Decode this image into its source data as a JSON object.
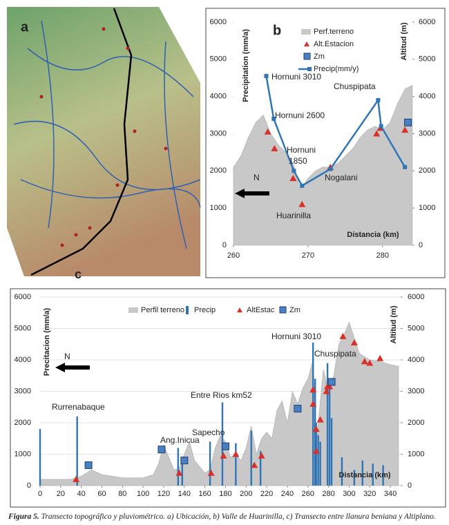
{
  "map": {
    "label": "a",
    "end_label": "c"
  },
  "chart_data": [
    {
      "type": "combo",
      "label": "b",
      "xlim": [
        260,
        284
      ],
      "xticks": [
        260,
        270,
        280
      ],
      "ylim": [
        0,
        6000
      ],
      "yticks": [
        0,
        1000,
        2000,
        3000,
        4000,
        5000,
        6000
      ],
      "y2lim": [
        0,
        6000
      ],
      "y2ticks": [
        0,
        1000,
        2000,
        3000,
        4000,
        5000,
        6000
      ],
      "grid": false,
      "legend": "upper right",
      "ylabel": "Precipitation (mm/a)",
      "y2label": "Altitud (m)",
      "xlabel": "Distancia (km)",
      "series": [
        {
          "name": "Perf.terreno",
          "style": "area",
          "color": "#c8c8c8",
          "axis": "y2",
          "x": [
            260,
            261,
            262,
            263,
            264,
            265,
            266,
            267,
            268,
            269,
            270,
            271,
            272,
            273,
            274,
            275,
            276,
            277,
            278,
            279,
            280,
            281,
            282,
            283,
            284
          ],
          "values": [
            2100,
            2400,
            2900,
            3300,
            3500,
            3000,
            2700,
            2500,
            2200,
            1500,
            1800,
            2000,
            2100,
            2100,
            2200,
            2400,
            2600,
            2900,
            3100,
            3200,
            3100,
            3300,
            3800,
            4200,
            4300
          ]
        },
        {
          "name": "Alt.Estacion",
          "style": "triangle",
          "color": "#d9302a",
          "axis": "y2",
          "x": [
            264.6,
            265.5,
            268,
            269.2,
            273,
            279.2,
            279.7,
            283
          ],
          "values": [
            3050,
            2600,
            1800,
            1100,
            2100,
            3000,
            3150,
            3100
          ]
        },
        {
          "name": "Zm",
          "style": "square",
          "color": "#4a7fc1",
          "axis": "y2",
          "x": [
            283.4
          ],
          "values": [
            3300
          ]
        },
        {
          "name": "Precip(mm/y)",
          "style": "line",
          "color": "#2f75b5",
          "x": [
            264.4,
            265.4,
            268.1,
            269.2,
            273,
            279.4,
            279.8,
            283
          ],
          "values": [
            4550,
            3400,
            2000,
            1600,
            2050,
            3900,
            3200,
            2100
          ]
        }
      ],
      "annotations": [
        "Hornuni 3010",
        "Hornuni 2600",
        "Hornuni",
        "1850",
        "Huarinilla",
        "Nogalani",
        "Chuspipata",
        "N"
      ]
    },
    {
      "type": "combo",
      "xlim": [
        0,
        350
      ],
      "xticks": [
        0,
        20,
        40,
        60,
        80,
        100,
        120,
        140,
        160,
        180,
        200,
        220,
        240,
        260,
        280,
        300,
        320,
        340
      ],
      "ylim": [
        0,
        6000
      ],
      "yticks": [
        0,
        1000,
        2000,
        3000,
        4000,
        5000,
        6000
      ],
      "y2lim": [
        0,
        6000
      ],
      "y2ticks": [
        0,
        1000,
        2000,
        3000,
        4000,
        5000,
        6000
      ],
      "grid": true,
      "legend": "top",
      "ylabel": "Precitacion (mm/a)",
      "y2label": "Altitud (m)",
      "xlabel": "Distancia (km)",
      "series": [
        {
          "name": "Perfil terreno",
          "style": "area",
          "color": "#c8c8c8",
          "axis": "y2",
          "x": [
            0,
            10,
            20,
            30,
            40,
            50,
            60,
            70,
            80,
            90,
            100,
            110,
            115,
            120,
            125,
            130,
            135,
            140,
            145,
            150,
            160,
            165,
            170,
            175,
            180,
            185,
            190,
            195,
            200,
            205,
            210,
            215,
            220,
            225,
            230,
            235,
            240,
            245,
            250,
            255,
            260,
            265,
            268,
            270,
            275,
            280,
            285,
            290,
            295,
            300,
            305,
            310,
            320,
            330,
            340,
            348
          ],
          "values": [
            200,
            200,
            200,
            200,
            300,
            500,
            350,
            300,
            250,
            250,
            250,
            350,
            700,
            1300,
            900,
            500,
            550,
            1000,
            1400,
            800,
            400,
            500,
            1200,
            1600,
            1400,
            900,
            1000,
            800,
            1200,
            1900,
            1000,
            1500,
            1700,
            1500,
            2400,
            2700,
            2000,
            3000,
            2600,
            3100,
            3400,
            4000,
            1200,
            2000,
            3700,
            3000,
            3500,
            4500,
            4800,
            5200,
            4700,
            4200,
            4000,
            3950,
            3850,
            3800
          ]
        },
        {
          "name": "Precip",
          "style": "bar",
          "color": "#2f75b5",
          "x": [
            0,
            36,
            134,
            138,
            165,
            177,
            190,
            205,
            214,
            265,
            267,
            268,
            270,
            272,
            279,
            281,
            283,
            293,
            305,
            313,
            323,
            333
          ],
          "values": [
            1800,
            2200,
            1200,
            700,
            1400,
            2650,
            1350,
            1750,
            1100,
            4550,
            3400,
            2000,
            1600,
            1400,
            3900,
            3200,
            2150,
            900,
            500,
            800,
            700,
            650
          ]
        },
        {
          "name": "AltEstac",
          "style": "triangle",
          "color": "#d9302a",
          "axis": "y2",
          "x": [
            35,
            135,
            166,
            178,
            190,
            208,
            215,
            265,
            265,
            268,
            268,
            272,
            278,
            279,
            281,
            294,
            305,
            315,
            320,
            330
          ],
          "values": [
            200,
            400,
            400,
            950,
            1000,
            650,
            950,
            3050,
            2600,
            1800,
            1100,
            2100,
            3000,
            3150,
            3150,
            4750,
            4550,
            3950,
            3900,
            4050
          ]
        },
        {
          "name": "Zm",
          "style": "square",
          "color": "#4a7fc1",
          "axis": "y2",
          "x": [
            47,
            118,
            140,
            180,
            250,
            283
          ],
          "values": [
            650,
            1150,
            800,
            1250,
            2450,
            3300
          ]
        }
      ],
      "annotations": [
        "Rurrenabaque",
        "Ang.Inicua",
        "Sapecho",
        "Entre Rios km52",
        "Hornuni 3010",
        "Chuspipata",
        "N"
      ]
    }
  ],
  "caption": {
    "label": "Figura 5.",
    "text": " Transecto topográfico y pluviométrico. a) Ubicación, b) Valle de Huarinilla, c) Transecto entre llanura beniana y Altiplano."
  }
}
